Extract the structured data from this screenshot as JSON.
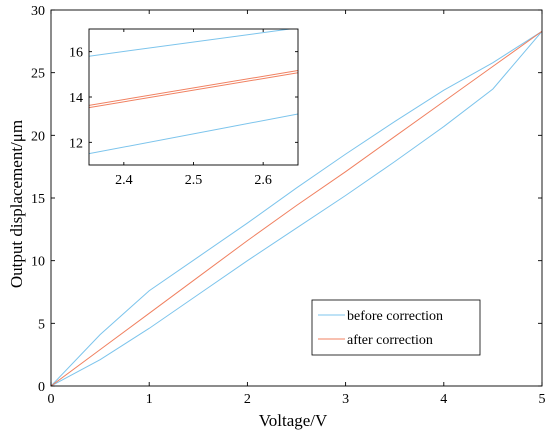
{
  "chart_data": [
    {
      "type": "line",
      "title": "",
      "xlabel": "Voltage/V",
      "ylabel": "Output displacement/μm",
      "xlim": [
        0,
        5
      ],
      "ylim": [
        0,
        30
      ],
      "xticks": [
        0,
        1,
        2,
        3,
        4,
        5
      ],
      "yticks": [
        0,
        5,
        10,
        15,
        20,
        25,
        30
      ],
      "grid": false,
      "legend_position": "bottom-right",
      "series": [
        {
          "name": "before correction",
          "color": "#7cc4ec",
          "x": [
            0,
            0.5,
            1,
            1.5,
            2,
            2.5,
            3,
            3.5,
            4,
            4.5,
            5,
            4.5,
            4,
            3.5,
            3,
            2.5,
            2,
            1.5,
            1,
            0.5,
            0
          ],
          "y": [
            0,
            2.1,
            4.6,
            7.3,
            10.0,
            12.6,
            15.2,
            17.9,
            20.7,
            23.7,
            28.3,
            25.8,
            23.6,
            21.1,
            18.5,
            15.8,
            13.0,
            10.3,
            7.6,
            4.1,
            0
          ]
        },
        {
          "name": "after correction",
          "color": "#f08060",
          "x": [
            0,
            0.5,
            1,
            1.5,
            2,
            2.5,
            3,
            3.5,
            4,
            4.5,
            5
          ],
          "y": [
            0,
            2.9,
            5.8,
            8.7,
            11.6,
            14.4,
            17.1,
            19.9,
            22.7,
            25.5,
            28.3
          ]
        }
      ]
    },
    {
      "type": "line",
      "title": "",
      "xlabel": "",
      "ylabel": "",
      "xlim": [
        2.35,
        2.65
      ],
      "ylim": [
        11,
        17
      ],
      "xticks": [
        2.4,
        2.5,
        2.6
      ],
      "yticks": [
        12,
        14,
        16
      ],
      "grid": false,
      "series": [
        {
          "color": "#7cc4ec",
          "x": [
            2.35,
            2.65
          ],
          "y": [
            15.8,
            17.05
          ]
        },
        {
          "color": "#7cc4ec",
          "x": [
            2.35,
            2.65
          ],
          "y": [
            11.5,
            13.25
          ]
        },
        {
          "color": "#f08060",
          "x": [
            2.35,
            2.65
          ],
          "y": [
            13.53,
            15.07
          ]
        },
        {
          "color": "#f08060",
          "x": [
            2.35,
            2.65
          ],
          "y": [
            13.63,
            15.17
          ]
        }
      ]
    }
  ]
}
